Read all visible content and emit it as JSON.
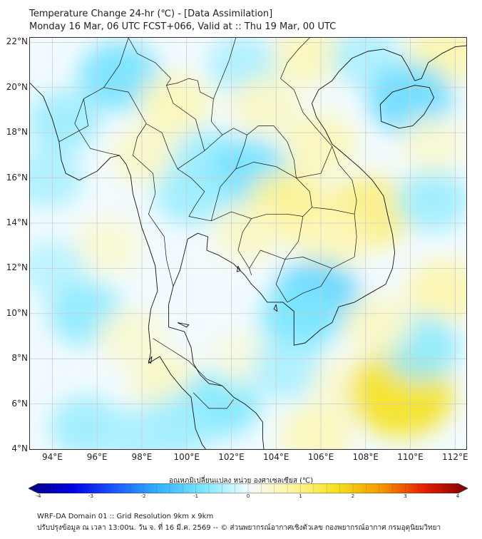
{
  "header": {
    "title": "Temperature Change 24-hr (℃) - [Data Assimilation]",
    "subtitle": "Monday 16 Mar, 06 UTC FCST+066, Valid at :: Thu 19 Mar, 00 UTC"
  },
  "map": {
    "lat_labels": [
      "22°N",
      "20°N",
      "18°N",
      "16°N",
      "14°N",
      "12°N",
      "10°N",
      "8°N",
      "6°N",
      "4°N"
    ],
    "lon_labels": [
      "94°E",
      "96°E",
      "98°E",
      "100°E",
      "102°E",
      "104°E",
      "106°E",
      "108°E",
      "110°E",
      "112°E"
    ],
    "lat_values": [
      22,
      20,
      18,
      16,
      14,
      12,
      10,
      8,
      6,
      4
    ],
    "lon_values": [
      94,
      96,
      98,
      100,
      102,
      104,
      106,
      108,
      110,
      112
    ],
    "extent": {
      "lon_min": 93.0,
      "lon_max": 112.5,
      "lat_min": 4.0,
      "lat_max": 22.2
    },
    "colors": {
      "water_base": "#f2fbff",
      "coast": "#111111",
      "grid": "#cccccc"
    },
    "anomalies": [
      {
        "lon": 97.0,
        "lat": 20.5,
        "v": -0.9
      },
      {
        "lon": 94.5,
        "lat": 18.5,
        "v": -0.6
      },
      {
        "lon": 102.5,
        "lat": 21.0,
        "v": -0.5
      },
      {
        "lon": 105.5,
        "lat": 21.5,
        "v": 0.6
      },
      {
        "lon": 111.5,
        "lat": 21.5,
        "v": 0.7
      },
      {
        "lon": 108.0,
        "lat": 21.3,
        "v": -0.5
      },
      {
        "lon": 110.0,
        "lat": 19.5,
        "v": -1.0
      },
      {
        "lon": 99.5,
        "lat": 19.3,
        "v": 0.6
      },
      {
        "lon": 103.5,
        "lat": 19.2,
        "v": 0.5
      },
      {
        "lon": 106.0,
        "lat": 17.5,
        "v": 0.6
      },
      {
        "lon": 98.2,
        "lat": 17.0,
        "v": 0.5
      },
      {
        "lon": 101.0,
        "lat": 16.8,
        "v": -0.6
      },
      {
        "lon": 102.8,
        "lat": 16.2,
        "v": -0.9
      },
      {
        "lon": 100.2,
        "lat": 15.3,
        "v": -0.6
      },
      {
        "lon": 104.5,
        "lat": 14.8,
        "v": 0.9
      },
      {
        "lon": 108.2,
        "lat": 14.5,
        "v": 1.0
      },
      {
        "lon": 102.8,
        "lat": 13.6,
        "v": 0.5
      },
      {
        "lon": 106.5,
        "lat": 13.3,
        "v": 0.6
      },
      {
        "lon": 105.8,
        "lat": 10.7,
        "v": -1.1
      },
      {
        "lon": 105.0,
        "lat": 9.7,
        "v": -0.8
      },
      {
        "lon": 96.5,
        "lat": 13.0,
        "v": 0.4
      },
      {
        "lon": 94.0,
        "lat": 12.0,
        "v": -0.4
      },
      {
        "lon": 95.5,
        "lat": 10.0,
        "v": -0.7
      },
      {
        "lon": 97.5,
        "lat": 9.0,
        "v": 0.4
      },
      {
        "lon": 99.0,
        "lat": 7.0,
        "v": 0.5
      },
      {
        "lon": 101.5,
        "lat": 6.0,
        "v": -0.8
      },
      {
        "lon": 99.5,
        "lat": 5.0,
        "v": -0.6
      },
      {
        "lon": 102.5,
        "lat": 8.0,
        "v": 0.3
      },
      {
        "lon": 104.5,
        "lat": 7.5,
        "v": -0.5
      },
      {
        "lon": 107.0,
        "lat": 6.8,
        "v": 0.4
      },
      {
        "lon": 109.6,
        "lat": 6.5,
        "v": 1.6
      },
      {
        "lon": 111.5,
        "lat": 11.0,
        "v": 0.7
      },
      {
        "lon": 110.5,
        "lat": 8.5,
        "v": -0.7
      },
      {
        "lon": 108.5,
        "lat": 9.5,
        "v": 0.5
      },
      {
        "lon": 105.8,
        "lat": 4.6,
        "v": 0.6
      },
      {
        "lon": 95.5,
        "lat": 5.0,
        "v": -0.6
      },
      {
        "lon": 111.0,
        "lat": 15.0,
        "v": -0.6
      },
      {
        "lon": 111.0,
        "lat": 17.5,
        "v": 0.4
      },
      {
        "lon": 93.8,
        "lat": 16.0,
        "v": -0.5
      },
      {
        "lon": 97.8,
        "lat": 4.5,
        "v": -0.5
      }
    ],
    "coastlines": [
      [
        [
          93.0,
          20.2
        ],
        [
          93.6,
          19.6
        ],
        [
          94.0,
          18.6
        ],
        [
          94.3,
          17.6
        ],
        [
          94.4,
          16.8
        ],
        [
          94.6,
          16.2
        ],
        [
          95.2,
          15.9
        ],
        [
          95.6,
          16.1
        ],
        [
          96.0,
          16.3
        ],
        [
          96.6,
          16.9
        ],
        [
          97.0,
          17.0
        ],
        [
          97.3,
          16.6
        ],
        [
          97.5,
          16.1
        ],
        [
          97.6,
          15.3
        ],
        [
          97.8,
          14.6
        ],
        [
          98.0,
          13.8
        ],
        [
          98.3,
          13.0
        ],
        [
          98.6,
          12.1
        ],
        [
          98.7,
          11.0
        ],
        [
          98.4,
          10.2
        ],
        [
          98.3,
          9.4
        ],
        [
          98.4,
          8.3
        ],
        [
          98.3,
          7.8
        ],
        [
          98.8,
          8.1
        ],
        [
          99.3,
          7.3
        ],
        [
          99.8,
          6.7
        ],
        [
          100.2,
          6.3
        ],
        [
          100.3,
          5.6
        ],
        [
          100.4,
          4.9
        ],
        [
          100.7,
          4.2
        ],
        [
          100.85,
          4.0
        ]
      ],
      [
        [
          103.45,
          4.0
        ],
        [
          103.4,
          4.5
        ],
        [
          103.4,
          5.2
        ],
        [
          103.1,
          5.6
        ],
        [
          102.6,
          6.0
        ],
        [
          102.1,
          6.3
        ],
        [
          101.6,
          6.8
        ],
        [
          101.0,
          6.9
        ],
        [
          100.6,
          7.3
        ],
        [
          100.3,
          7.8
        ],
        [
          100.2,
          8.5
        ],
        [
          99.9,
          9.2
        ],
        [
          99.2,
          9.4
        ],
        [
          99.2,
          10.4
        ],
        [
          99.4,
          11.2
        ],
        [
          99.7,
          11.9
        ],
        [
          99.9,
          12.7
        ],
        [
          100.05,
          13.3
        ],
        [
          100.5,
          13.55
        ],
        [
          100.95,
          13.4
        ],
        [
          100.9,
          12.8
        ],
        [
          101.4,
          12.6
        ],
        [
          102.1,
          12.2
        ],
        [
          102.6,
          11.7
        ],
        [
          102.9,
          11.3
        ],
        [
          103.3,
          10.9
        ],
        [
          103.6,
          10.5
        ],
        [
          104.3,
          10.5
        ],
        [
          104.8,
          10.1
        ],
        [
          104.8,
          9.4
        ],
        [
          104.8,
          8.6
        ],
        [
          105.3,
          8.7
        ],
        [
          106.0,
          9.3
        ],
        [
          106.5,
          9.6
        ],
        [
          106.8,
          10.3
        ],
        [
          107.5,
          10.5
        ],
        [
          108.2,
          10.9
        ],
        [
          108.9,
          11.3
        ],
        [
          109.2,
          12.0
        ],
        [
          109.3,
          12.7
        ],
        [
          109.2,
          13.5
        ],
        [
          109.0,
          14.3
        ],
        [
          108.8,
          15.2
        ],
        [
          108.3,
          15.9
        ],
        [
          107.8,
          16.4
        ],
        [
          107.1,
          17.0
        ],
        [
          106.5,
          17.5
        ],
        [
          106.2,
          18.1
        ],
        [
          105.8,
          18.7
        ],
        [
          105.6,
          19.3
        ],
        [
          105.9,
          19.9
        ],
        [
          106.5,
          20.3
        ],
        [
          106.8,
          20.7
        ],
        [
          107.4,
          21.3
        ],
        [
          108.1,
          21.6
        ],
        [
          108.8,
          21.7
        ],
        [
          109.6,
          21.4
        ],
        [
          109.9,
          20.9
        ],
        [
          110.2,
          20.3
        ],
        [
          110.5,
          20.4
        ],
        [
          110.8,
          21.1
        ],
        [
          111.4,
          21.5
        ],
        [
          112.0,
          21.8
        ],
        [
          112.5,
          21.85
        ]
      ],
      [
        [
          108.65,
          19.25
        ],
        [
          109.2,
          19.8
        ],
        [
          110.2,
          20.1
        ],
        [
          110.85,
          20.0
        ],
        [
          111.05,
          19.55
        ],
        [
          110.6,
          18.8
        ],
        [
          110.1,
          18.3
        ],
        [
          109.5,
          18.2
        ],
        [
          108.7,
          18.5
        ],
        [
          108.65,
          19.25
        ]
      ],
      [
        [
          104.0,
          10.4
        ],
        [
          104.05,
          10.1
        ],
        [
          103.9,
          10.2
        ],
        [
          104.0,
          10.4
        ]
      ],
      [
        [
          98.3,
          7.9
        ],
        [
          98.45,
          8.1
        ],
        [
          98.4,
          7.8
        ],
        [
          98.3,
          7.9
        ]
      ],
      [
        [
          99.6,
          9.6
        ],
        [
          100.1,
          9.5
        ],
        [
          100.0,
          9.4
        ],
        [
          99.6,
          9.6
        ]
      ],
      [
        [
          102.3,
          12.1
        ],
        [
          102.4,
          11.9
        ],
        [
          102.25,
          11.85
        ],
        [
          102.3,
          12.1
        ]
      ]
    ],
    "borders": [
      [
        [
          97.4,
          22.2
        ],
        [
          97.8,
          21.5
        ],
        [
          98.6,
          21.1
        ],
        [
          99.3,
          20.4
        ],
        [
          99.1,
          20.1
        ],
        [
          99.6,
          20.2
        ],
        [
          100.1,
          20.4
        ],
        [
          100.5,
          20.3
        ],
        [
          100.6,
          19.8
        ],
        [
          101.2,
          19.5
        ],
        [
          101.1,
          18.5
        ],
        [
          101.6,
          17.9
        ],
        [
          102.1,
          18.2
        ],
        [
          102.7,
          17.9
        ],
        [
          103.2,
          18.3
        ],
        [
          103.9,
          18.3
        ],
        [
          104.5,
          17.6
        ],
        [
          104.8,
          16.8
        ],
        [
          104.9,
          16.0
        ],
        [
          105.5,
          15.4
        ],
        [
          105.6,
          14.7
        ],
        [
          105.2,
          14.3
        ],
        [
          104.5,
          14.4
        ],
        [
          103.6,
          14.4
        ],
        [
          102.9,
          14.2
        ],
        [
          102.5,
          13.6
        ],
        [
          102.3,
          12.8
        ],
        [
          102.8,
          12.0
        ],
        [
          102.9,
          11.7
        ]
      ],
      [
        [
          101.2,
          19.5
        ],
        [
          101.9,
          21.2
        ],
        [
          102.2,
          22.2
        ]
      ],
      [
        [
          105.5,
          22.2
        ],
        [
          105.0,
          21.7
        ],
        [
          104.5,
          21.1
        ],
        [
          104.2,
          20.4
        ],
        [
          104.8,
          19.9
        ],
        [
          105.2,
          18.9
        ],
        [
          105.7,
          18.3
        ],
        [
          106.5,
          17.4
        ],
        [
          106.8,
          16.6
        ],
        [
          107.4,
          15.9
        ],
        [
          107.6,
          15.0
        ],
        [
          107.5,
          14.4
        ]
      ],
      [
        [
          105.6,
          14.7
        ],
        [
          106.5,
          14.6
        ],
        [
          107.5,
          14.4
        ],
        [
          107.6,
          13.4
        ],
        [
          107.5,
          12.5
        ],
        [
          106.5,
          12.0
        ],
        [
          106.0,
          11.2
        ],
        [
          105.2,
          10.9
        ],
        [
          104.5,
          10.5
        ]
      ],
      [
        [
          97.4,
          22.2
        ],
        [
          97.0,
          21.0
        ],
        [
          96.3,
          20.0
        ],
        [
          95.4,
          19.5
        ],
        [
          95.0,
          18.4
        ],
        [
          95.7,
          17.3
        ],
        [
          96.5,
          17.1
        ],
        [
          97.0,
          17.0
        ]
      ],
      [
        [
          98.2,
          18.4
        ],
        [
          98.9,
          18.0
        ],
        [
          99.2,
          17.2
        ],
        [
          99.6,
          16.4
        ],
        [
          100.2,
          16.0
        ],
        [
          100.8,
          15.4
        ],
        [
          100.4,
          14.8
        ],
        [
          100.1,
          14.3
        ]
      ],
      [
        [
          100.1,
          14.3
        ],
        [
          101.1,
          14.1
        ],
        [
          102.0,
          14.5
        ],
        [
          102.9,
          14.2
        ]
      ],
      [
        [
          99.6,
          16.4
        ],
        [
          100.8,
          17.2
        ],
        [
          101.6,
          17.9
        ]
      ],
      [
        [
          101.1,
          14.1
        ],
        [
          101.5,
          15.6
        ],
        [
          102.2,
          16.4
        ],
        [
          103.0,
          16.7
        ],
        [
          104.0,
          16.5
        ],
        [
          104.9,
          16.0
        ]
      ],
      [
        [
          102.2,
          16.4
        ],
        [
          102.6,
          17.5
        ],
        [
          102.7,
          17.9
        ]
      ],
      [
        [
          100.8,
          17.2
        ],
        [
          100.4,
          18.6
        ],
        [
          99.4,
          19.3
        ],
        [
          99.1,
          20.1
        ]
      ],
      [
        [
          98.5,
          8.9
        ],
        [
          99.3,
          8.4
        ],
        [
          100.1,
          7.9
        ],
        [
          100.9,
          7.1
        ],
        [
          101.6,
          6.8
        ]
      ],
      [
        [
          100.3,
          6.5
        ],
        [
          101.0,
          5.8
        ],
        [
          101.8,
          5.8
        ],
        [
          102.1,
          6.2
        ]
      ],
      [
        [
          104.9,
          16.0
        ],
        [
          106.0,
          16.2
        ],
        [
          106.5,
          17.4
        ]
      ],
      [
        [
          105.2,
          14.3
        ],
        [
          105.0,
          13.2
        ],
        [
          104.4,
          12.4
        ],
        [
          104.0,
          11.3
        ],
        [
          104.5,
          10.5
        ]
      ],
      [
        [
          102.8,
          12.0
        ],
        [
          103.3,
          12.8
        ],
        [
          104.4,
          12.4
        ],
        [
          105.2,
          12.5
        ],
        [
          106.5,
          12.0
        ]
      ],
      [
        [
          96.3,
          20.0
        ],
        [
          97.4,
          19.8
        ],
        [
          98.2,
          18.4
        ]
      ],
      [
        [
          98.2,
          18.4
        ],
        [
          97.8,
          17.8
        ],
        [
          97.6,
          17.0
        ],
        [
          98.5,
          16.2
        ],
        [
          98.6,
          15.3
        ],
        [
          98.3,
          14.4
        ],
        [
          99.0,
          13.4
        ],
        [
          99.1,
          12.4
        ],
        [
          99.4,
          11.2
        ]
      ],
      [
        [
          94.3,
          17.6
        ],
        [
          95.6,
          18.3
        ],
        [
          95.4,
          19.5
        ]
      ]
    ]
  },
  "colorbar": {
    "label": "อุณหภูมิเปลี่ยนแปลง หน่วย องศาเซลเซียส (℃)",
    "min": -4,
    "max": 4,
    "ticks": [
      "-4",
      "-3",
      "-2",
      "-1",
      "0",
      "1",
      "2",
      "3",
      "4"
    ],
    "tick_values": [
      -4,
      -3,
      -2,
      -1,
      0,
      1,
      2,
      3,
      4
    ],
    "colors": [
      "#000080",
      "#0000e6",
      "#1c5cff",
      "#33b5ff",
      "#7ee8ff",
      "#f2fbff",
      "#fff5a0",
      "#f5e21e",
      "#f59a00",
      "#e62000",
      "#800000"
    ]
  },
  "footer": {
    "line1": "WRF-DA Domain 01 :: Grid Resolution 9km x 9km",
    "line2": "ปรับปรุงข้อมูล ณ เวลา 13:00น. วัน จ. ที่ 16 มี.ค. 2569 -- © ส่วนพยากรณ์อากาศเชิงตัวเลข กองพยากรณ์อากาศ กรมอุตุนิยมวิทยา"
  }
}
